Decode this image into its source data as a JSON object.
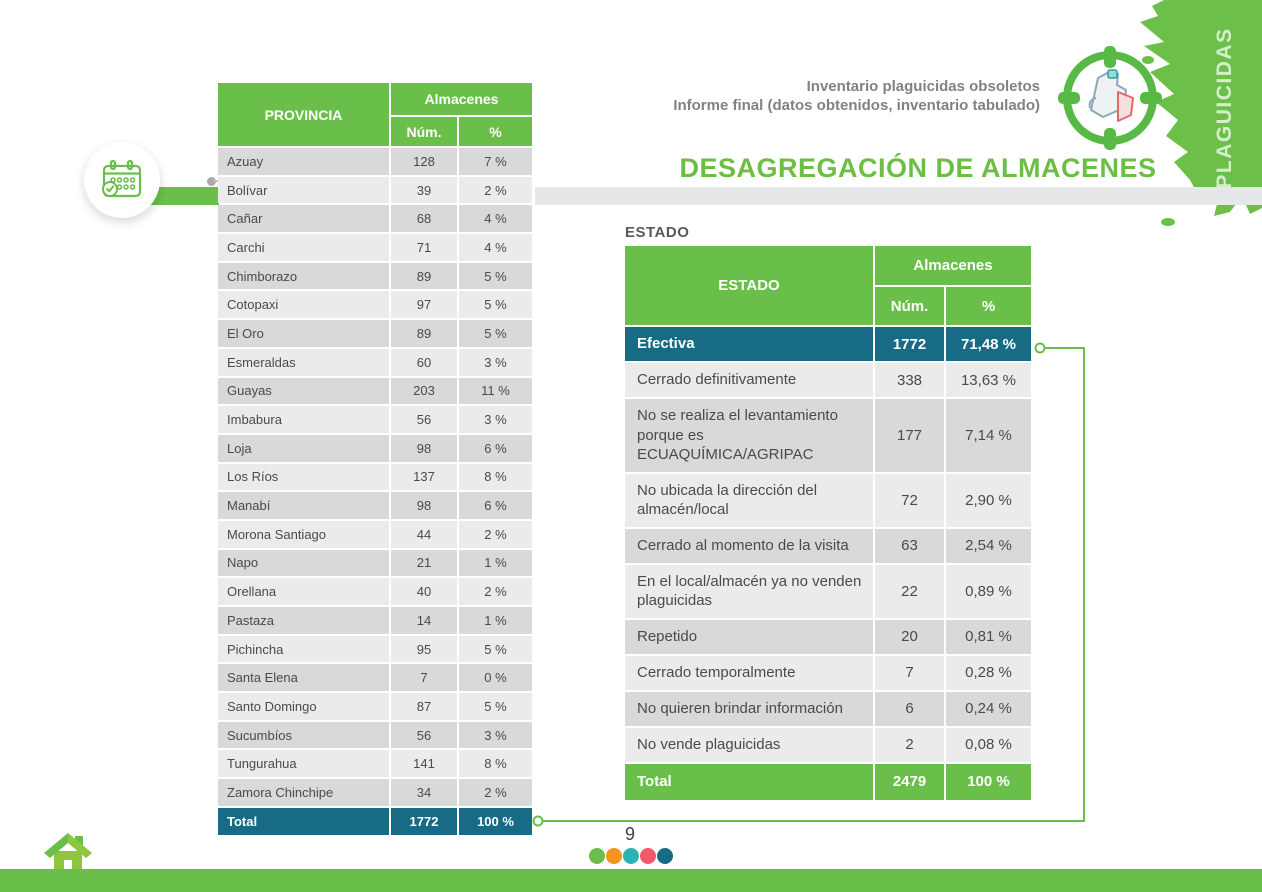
{
  "header": {
    "doc_line1": "Inventario plaguicidas obsoletos",
    "doc_line2": "Informe final (datos obtenidos, inventario tabulado)",
    "side_tab": "PLAGUICIDAS",
    "title": "DESAGREGACIÓN DE ALMACENES"
  },
  "province_table": {
    "header": {
      "provincia": "PROVINCIA",
      "group": "Almacenes",
      "num": "Núm.",
      "pct": "%"
    },
    "rows": [
      {
        "name": "Azuay",
        "num": "128",
        "pct": "7 %"
      },
      {
        "name": "Bolívar",
        "num": "39",
        "pct": "2 %"
      },
      {
        "name": "Cañar",
        "num": "68",
        "pct": "4 %"
      },
      {
        "name": "Carchi",
        "num": "71",
        "pct": "4 %"
      },
      {
        "name": "Chimborazo",
        "num": "89",
        "pct": "5 %"
      },
      {
        "name": "Cotopaxi",
        "num": "97",
        "pct": "5 %"
      },
      {
        "name": "El Oro",
        "num": "89",
        "pct": "5 %"
      },
      {
        "name": "Esmeraldas",
        "num": "60",
        "pct": "3 %"
      },
      {
        "name": "Guayas",
        "num": "203",
        "pct": "11 %"
      },
      {
        "name": "Imbabura",
        "num": "56",
        "pct": "3 %"
      },
      {
        "name": "Loja",
        "num": "98",
        "pct": "6 %"
      },
      {
        "name": "Los Ríos",
        "num": "137",
        "pct": "8 %"
      },
      {
        "name": "Manabí",
        "num": "98",
        "pct": "6 %"
      },
      {
        "name": "Morona Santiago",
        "num": "44",
        "pct": "2 %"
      },
      {
        "name": "Napo",
        "num": "21",
        "pct": "1 %"
      },
      {
        "name": "Orellana",
        "num": "40",
        "pct": "2 %"
      },
      {
        "name": "Pastaza",
        "num": "14",
        "pct": "1 %"
      },
      {
        "name": "Pichincha",
        "num": "95",
        "pct": "5 %"
      },
      {
        "name": "Santa Elena",
        "num": "7",
        "pct": "0 %"
      },
      {
        "name": "Santo Domingo",
        "num": "87",
        "pct": "5 %"
      },
      {
        "name": "Sucumbíos",
        "num": "56",
        "pct": "3 %"
      },
      {
        "name": "Tungurahua",
        "num": "141",
        "pct": "8 %"
      },
      {
        "name": "Zamora Chinchipe",
        "num": "34",
        "pct": "2 %"
      }
    ],
    "total": {
      "label": "Total",
      "num": "1772",
      "pct": "100 %"
    }
  },
  "estado": {
    "section_label": "ESTADO",
    "header": {
      "estado": "ESTADO",
      "group": "Almacenes",
      "num": "Núm.",
      "pct": "%"
    },
    "rows": [
      {
        "name": "Efectiva",
        "num": "1772",
        "pct": "71,48 %",
        "highlight": true
      },
      {
        "name": "Cerrado definitivamente",
        "num": "338",
        "pct": "13,63 %"
      },
      {
        "name": "No se realiza el levantamiento porque es ECUAQUÍMICA/AGRIPAC",
        "num": "177",
        "pct": "7,14 %"
      },
      {
        "name": "No ubicada la dirección del almacén/local",
        "num": "72",
        "pct": "2,90 %"
      },
      {
        "name": "Cerrado al momento de la visita",
        "num": "63",
        "pct": "2,54 %"
      },
      {
        "name": "En el local/almacén ya no venden plaguicidas",
        "num": "22",
        "pct": "0,89 %"
      },
      {
        "name": "Repetido",
        "num": "20",
        "pct": "0,81 %"
      },
      {
        "name": "Cerrado temporalmente",
        "num": "7",
        "pct": "0,28 %"
      },
      {
        "name": "No quieren brindar información",
        "num": "6",
        "pct": "0,24 %"
      },
      {
        "name": "No vende plaguicidas",
        "num": "2",
        "pct": "0,08 %"
      }
    ],
    "total": {
      "label": "Total",
      "num": "2479",
      "pct": "100 %"
    }
  },
  "footer": {
    "page_number": "9",
    "dot_colors": [
      "#6abf4a",
      "#f7941e",
      "#2ab5b5",
      "#f4566a",
      "#176b84"
    ]
  },
  "colors": {
    "green": "#6abf4a",
    "teal": "#176b84",
    "row_dark": "#d9d9d9",
    "row_light": "#ebebec",
    "bar_gray": "#e6e7e8",
    "text_gray": "#808285"
  }
}
